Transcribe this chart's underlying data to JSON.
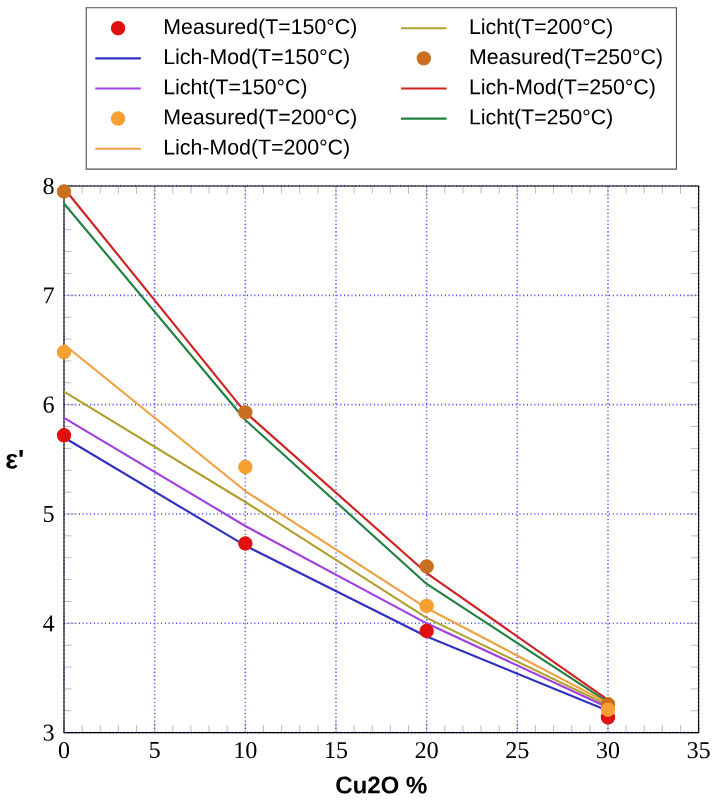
{
  "chart_data": {
    "type": "line",
    "xlabel": "Cu2O %",
    "ylabel": "ε'",
    "x": [
      0,
      10,
      20,
      30
    ],
    "series": [
      {
        "name": "Measured(T=150°C)",
        "type": "scatter",
        "color": "#e01010",
        "values": [
          5.72,
          4.73,
          3.93,
          3.14
        ]
      },
      {
        "name": "Lich-Mod(T=150°C)",
        "type": "line",
        "color": "#3030c0",
        "values": [
          5.7,
          4.71,
          3.88,
          3.2
        ]
      },
      {
        "name": "Licht(T=150°C)",
        "type": "line",
        "color": "#a040e0",
        "values": [
          5.88,
          4.89,
          4.0,
          3.23
        ]
      },
      {
        "name": "Measured(T=200°C)",
        "type": "scatter",
        "color": "#f5a030",
        "values": [
          6.48,
          5.43,
          4.16,
          3.21
        ]
      },
      {
        "name": "Lich-Mod(T=200°C)",
        "type": "line",
        "color": "#f0a040",
        "values": [
          6.55,
          5.21,
          4.14,
          3.27
        ]
      },
      {
        "name": "Licht(T=200°C)",
        "type": "line",
        "color": "#b0a030",
        "values": [
          6.12,
          5.11,
          4.05,
          3.25
        ]
      },
      {
        "name": "Measured(T=250°C)",
        "type": "scatter",
        "color": "#c87020",
        "values": [
          7.95,
          5.93,
          4.52,
          3.26
        ]
      },
      {
        "name": "Lich-Mod(T=250°C)",
        "type": "line",
        "color": "#d02020",
        "values": [
          7.98,
          5.93,
          4.46,
          3.3
        ]
      },
      {
        "name": "Licht(T=250°C)",
        "type": "line",
        "color": "#208040",
        "values": [
          7.84,
          5.86,
          4.36,
          3.28
        ]
      }
    ],
    "xlim": [
      0,
      35
    ],
    "ylim": [
      3,
      8
    ],
    "xticks": [
      0,
      5,
      10,
      15,
      20,
      25,
      30,
      35
    ],
    "yticks": [
      3,
      4,
      5,
      6,
      7,
      8
    ],
    "grid": true,
    "legend": "top"
  }
}
